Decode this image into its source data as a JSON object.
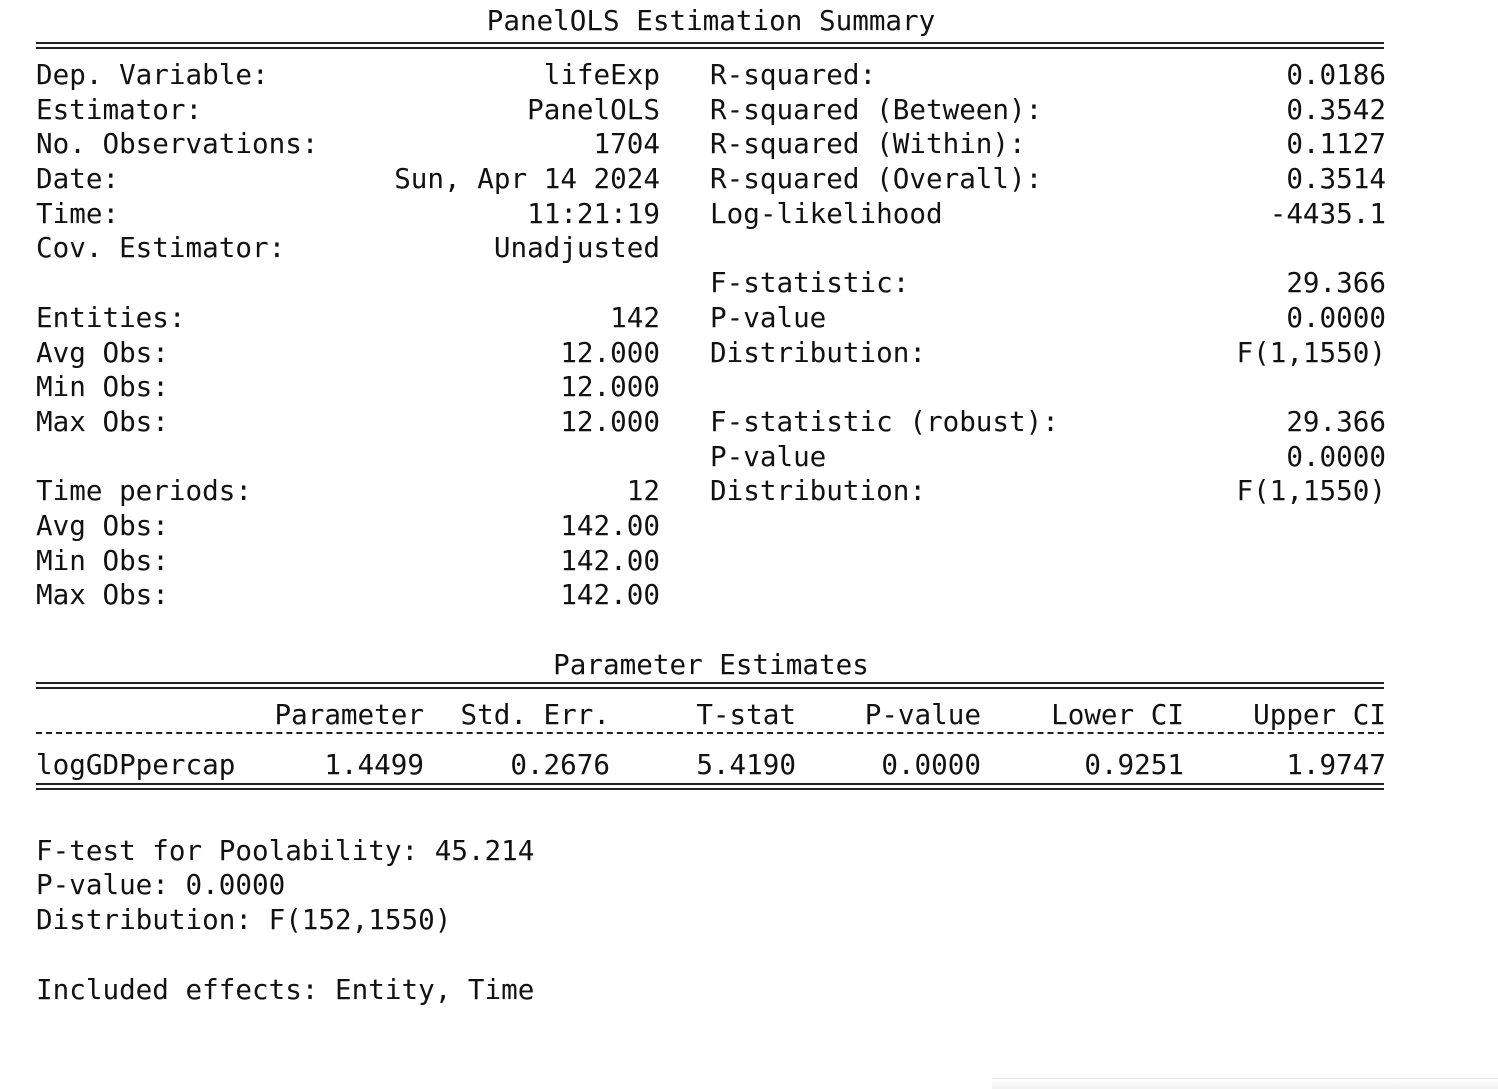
{
  "summary": {
    "title": "PanelOLS Estimation Summary",
    "left": [
      {
        "label": "Dep. Variable:",
        "value": "lifeExp"
      },
      {
        "label": "Estimator:",
        "value": "PanelOLS"
      },
      {
        "label": "No. Observations:",
        "value": "1704"
      },
      {
        "label": "Date:",
        "value": "Sun, Apr 14 2024"
      },
      {
        "label": "Time:",
        "value": "11:21:19"
      },
      {
        "label": "Cov. Estimator:",
        "value": "Unadjusted"
      },
      {
        "label": "Entities:",
        "value": "142"
      },
      {
        "label": "Avg Obs:",
        "value": "12.000"
      },
      {
        "label": "Min Obs:",
        "value": "12.000"
      },
      {
        "label": "Max Obs:",
        "value": "12.000"
      },
      {
        "label": "Time periods:",
        "value": "12"
      },
      {
        "label": "Avg Obs:",
        "value": "142.00"
      },
      {
        "label": "Min Obs:",
        "value": "142.00"
      },
      {
        "label": "Max Obs:",
        "value": "142.00"
      }
    ],
    "right": [
      {
        "label": "R-squared:",
        "value": "0.0186"
      },
      {
        "label": "R-squared (Between):",
        "value": "0.3542"
      },
      {
        "label": "R-squared (Within):",
        "value": "0.1127"
      },
      {
        "label": "R-squared (Overall):",
        "value": "0.3514"
      },
      {
        "label": "Log-likelihood",
        "value": "-4435.1"
      },
      {
        "label": "F-statistic:",
        "value": "29.366"
      },
      {
        "label": "P-value",
        "value": "0.0000"
      },
      {
        "label": "Distribution:",
        "value": "F(1,1550)"
      },
      {
        "label": "F-statistic (robust):",
        "value": "29.366"
      },
      {
        "label": "P-value",
        "value": "0.0000"
      },
      {
        "label": "Distribution:",
        "value": "F(1,1550)"
      }
    ]
  },
  "params": {
    "title": "Parameter Estimates",
    "headers": [
      "Parameter",
      "Std. Err.",
      "T-stat",
      "P-value",
      "Lower CI",
      "Upper CI"
    ],
    "rows": [
      {
        "name": "logGDPpercap",
        "values": [
          "1.4499",
          "0.2676",
          "5.4190",
          "0.0000",
          "0.9251",
          "1.9747"
        ]
      }
    ]
  },
  "footer": {
    "poolability": "F-test for Poolability: 45.214",
    "pvalue": "P-value: 0.0000",
    "distribution": "Distribution: F(152,1550)",
    "effects": "Included effects: Entity, Time"
  }
}
